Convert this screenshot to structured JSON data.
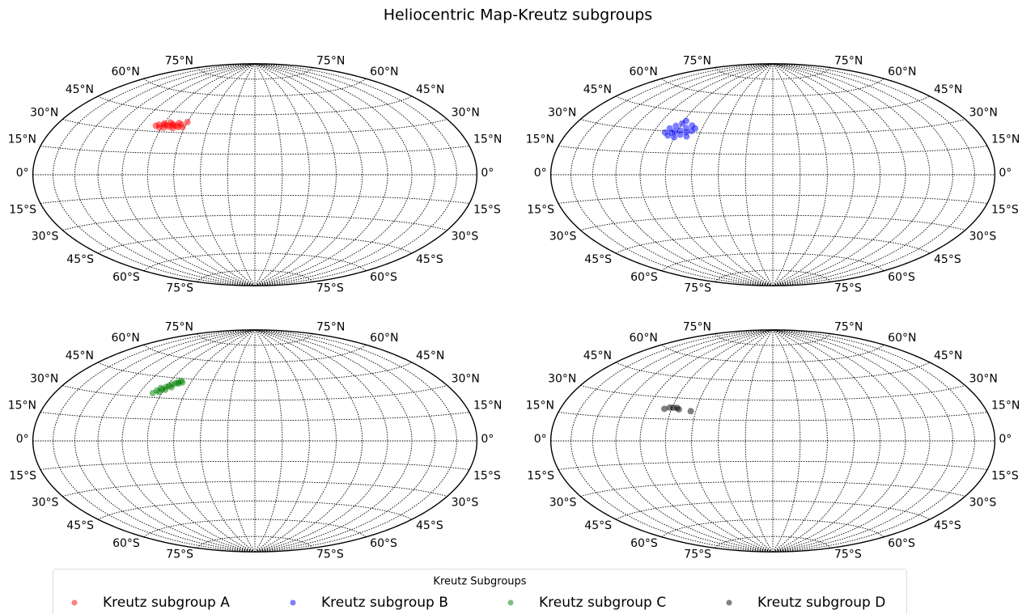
{
  "title": "Heliocentric Map-Kreutz subgroups",
  "legend": {
    "title": "Kreutz Subgroups",
    "loc": "lower center"
  },
  "chart_data": [
    {
      "type": "scatter",
      "projection": "hammer",
      "xlim": [
        -180,
        180
      ],
      "ylim": [
        -90,
        90
      ],
      "xticks": [
        -160,
        -140,
        -120,
        -100,
        -80,
        -60,
        -40,
        -20,
        0,
        20,
        40,
        60,
        80,
        100,
        120,
        140,
        160
      ],
      "yticks": [
        {
          "value": -75,
          "label": "75°S"
        },
        {
          "value": -60,
          "label": "60°S"
        },
        {
          "value": -45,
          "label": "45°S"
        },
        {
          "value": -30,
          "label": "30°S"
        },
        {
          "value": -15,
          "label": "15°S"
        },
        {
          "value": 0,
          "label": "0°"
        },
        {
          "value": 15,
          "label": "15°N"
        },
        {
          "value": 30,
          "label": "30°N"
        },
        {
          "value": 45,
          "label": "45°N"
        },
        {
          "value": 60,
          "label": "60°N"
        },
        {
          "value": 75,
          "label": "75°N"
        }
      ],
      "grid": true,
      "alpha": 0.5,
      "series": [
        {
          "name": "Kreutz subgroup A",
          "color": "#ff0000",
          "x": [
            -86,
            -82,
            -80,
            -78,
            -76,
            -74,
            -72,
            -70,
            -68,
            -66,
            -64,
            -62,
            -75,
            -79,
            -71,
            -60,
            -84,
            -67
          ],
          "values": [
            34,
            33,
            36,
            33,
            35,
            34,
            36,
            33,
            35,
            34,
            36,
            34,
            37,
            35,
            35,
            38,
            35,
            37
          ]
        }
      ]
    },
    {
      "type": "scatter",
      "projection": "hammer",
      "xlim": [
        -180,
        180
      ],
      "ylim": [
        -90,
        90
      ],
      "xticks": [
        -160,
        -140,
        -120,
        -100,
        -80,
        -60,
        -40,
        -20,
        0,
        20,
        40,
        60,
        80,
        100,
        120,
        140,
        160
      ],
      "yticks": [
        {
          "value": -75,
          "label": "75°S"
        },
        {
          "value": -60,
          "label": "60°S"
        },
        {
          "value": -45,
          "label": "45°S"
        },
        {
          "value": -30,
          "label": "30°S"
        },
        {
          "value": -15,
          "label": "15°S"
        },
        {
          "value": 0,
          "label": "0°"
        },
        {
          "value": 15,
          "label": "15°N"
        },
        {
          "value": 30,
          "label": "30°N"
        },
        {
          "value": 45,
          "label": "45°N"
        },
        {
          "value": 60,
          "label": "60°N"
        },
        {
          "value": 75,
          "label": "75°N"
        }
      ],
      "grid": true,
      "alpha": 0.5,
      "series": [
        {
          "name": "Kreutz subgroup B",
          "color": "#0000ff",
          "x": [
            -90,
            -88,
            -86,
            -84,
            -82,
            -80,
            -80,
            -78,
            -76,
            -74,
            -72,
            -70,
            -70,
            -68,
            -66,
            -78,
            -84
          ],
          "values": [
            29,
            32,
            27,
            34,
            30,
            26,
            36,
            31,
            28,
            33,
            30,
            35,
            27,
            31,
            33,
            38,
            29
          ]
        }
      ]
    },
    {
      "type": "scatter",
      "projection": "hammer",
      "xlim": [
        -180,
        180
      ],
      "ylim": [
        -90,
        90
      ],
      "xticks": [
        -160,
        -140,
        -120,
        -100,
        -80,
        -60,
        -40,
        -20,
        0,
        20,
        40,
        60,
        80,
        100,
        120,
        140,
        160
      ],
      "yticks": [
        {
          "value": -75,
          "label": "75°S"
        },
        {
          "value": -60,
          "label": "60°S"
        },
        {
          "value": -45,
          "label": "45°S"
        },
        {
          "value": -30,
          "label": "30°S"
        },
        {
          "value": -15,
          "label": "15°S"
        },
        {
          "value": 0,
          "label": "0°"
        },
        {
          "value": 15,
          "label": "15°N"
        },
        {
          "value": 30,
          "label": "30°N"
        },
        {
          "value": 45,
          "label": "45°N"
        },
        {
          "value": 60,
          "label": "60°N"
        },
        {
          "value": 75,
          "label": "75°N"
        }
      ],
      "grid": true,
      "alpha": 0.5,
      "series": [
        {
          "name": "Kreutz subgroup C",
          "color": "#008000",
          "x": [
            -88,
            -86,
            -84,
            -82,
            -80,
            -78,
            -76,
            -74,
            -72,
            -70,
            -68,
            -79,
            -75,
            -83,
            -71
          ],
          "values": [
            33,
            35,
            37,
            36,
            38,
            39,
            40,
            41,
            42,
            43,
            42,
            36,
            38,
            34,
            41
          ]
        }
      ]
    },
    {
      "type": "scatter",
      "projection": "hammer",
      "xlim": [
        -180,
        180
      ],
      "ylim": [
        -90,
        90
      ],
      "xticks": [
        -160,
        -140,
        -120,
        -100,
        -80,
        -60,
        -40,
        -20,
        0,
        20,
        40,
        60,
        80,
        100,
        120,
        140,
        160
      ],
      "yticks": [
        {
          "value": -75,
          "label": "75°S"
        },
        {
          "value": -60,
          "label": "60°S"
        },
        {
          "value": -45,
          "label": "45°S"
        },
        {
          "value": -30,
          "label": "30°S"
        },
        {
          "value": -15,
          "label": "15°S"
        },
        {
          "value": 0,
          "label": "0°"
        },
        {
          "value": 15,
          "label": "15°N"
        },
        {
          "value": 30,
          "label": "30°N"
        },
        {
          "value": 45,
          "label": "45°N"
        },
        {
          "value": 60,
          "label": "60°N"
        },
        {
          "value": 75,
          "label": "75°N"
        }
      ],
      "grid": true,
      "alpha": 0.5,
      "series": [
        {
          "name": "Kreutz subgroup D",
          "color": "#000000",
          "x": [
            -86,
            -82,
            -79,
            -76,
            -74,
            -64
          ],
          "values": [
            22,
            23,
            23,
            23,
            22,
            21
          ]
        }
      ]
    }
  ]
}
